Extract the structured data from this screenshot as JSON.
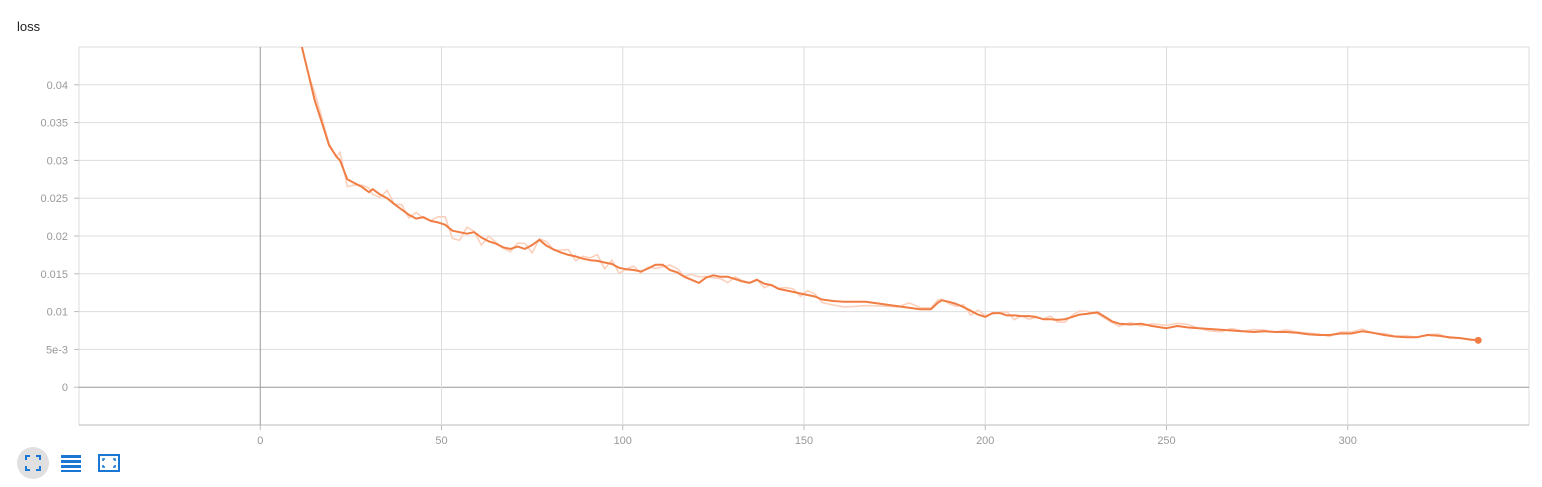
{
  "chart_data": {
    "type": "line",
    "title": "loss",
    "xlim": [
      -50,
      350
    ],
    "ylim": [
      -0.005,
      0.045
    ],
    "x_ticks": [
      0,
      50,
      100,
      150,
      200,
      250,
      300
    ],
    "y_ticks": [
      0,
      0.005,
      0.01,
      0.015,
      0.02,
      0.025,
      0.03,
      0.035,
      0.04
    ],
    "y_tick_labels": [
      "0",
      "5e-3",
      "0.01",
      "0.015",
      "0.02",
      "0.025",
      "0.03",
      "0.035",
      "0.04"
    ],
    "grid": true,
    "colors": {
      "smoothed": "#f07d44",
      "raw": "#fbd1bd",
      "grid": "#dddddd",
      "zero_axis": "#999999"
    },
    "series": [
      {
        "role": "smoothed",
        "x": [
          11.5,
          13,
          15,
          17,
          19,
          21,
          22,
          24,
          26,
          28,
          30,
          31,
          33,
          35,
          37,
          39,
          41,
          43,
          45,
          47,
          49,
          51,
          53,
          55,
          57,
          59,
          61,
          63,
          65,
          67,
          69,
          71,
          73,
          75,
          77,
          79,
          81,
          83,
          85,
          87,
          89,
          91,
          93,
          95,
          97,
          99,
          101,
          103,
          105,
          107,
          109,
          111,
          113,
          115,
          117,
          119,
          121,
          123,
          125,
          127,
          129,
          131,
          133,
          135,
          137,
          139,
          141,
          143,
          145,
          147,
          149,
          151,
          153,
          155,
          158,
          161,
          164,
          167,
          170,
          173,
          176,
          179,
          182,
          185,
          187,
          188,
          190,
          192,
          194,
          196,
          198,
          200,
          202,
          204,
          206,
          208,
          210,
          212,
          214,
          216,
          218,
          220,
          222,
          224,
          226,
          228,
          231,
          233,
          235,
          237,
          240,
          243,
          246,
          250,
          253,
          256,
          259,
          262,
          265,
          268,
          271,
          274,
          277,
          280,
          283,
          286,
          289,
          292,
          295,
          298,
          301,
          304,
          307,
          310,
          313,
          316,
          319,
          322,
          325,
          328,
          331,
          334,
          336
        ],
        "y": [
          0.045,
          0.042,
          0.038,
          0.035,
          0.032,
          0.0305,
          0.03,
          0.0275,
          0.027,
          0.0265,
          0.0258,
          0.0262,
          0.0255,
          0.025,
          0.0242,
          0.0235,
          0.0228,
          0.0223,
          0.0225,
          0.022,
          0.0218,
          0.0215,
          0.0207,
          0.0205,
          0.0203,
          0.0205,
          0.0198,
          0.0193,
          0.019,
          0.0185,
          0.0183,
          0.0186,
          0.0183,
          0.0188,
          0.0195,
          0.0187,
          0.0182,
          0.0178,
          0.0175,
          0.0173,
          0.017,
          0.0168,
          0.0167,
          0.0165,
          0.0163,
          0.0158,
          0.0156,
          0.0155,
          0.0153,
          0.0157,
          0.0162,
          0.0162,
          0.0155,
          0.0152,
          0.0146,
          0.0142,
          0.0138,
          0.0145,
          0.0148,
          0.0146,
          0.0146,
          0.0143,
          0.014,
          0.0138,
          0.0142,
          0.0137,
          0.0135,
          0.013,
          0.0128,
          0.0126,
          0.0124,
          0.0122,
          0.012,
          0.0116,
          0.0114,
          0.0113,
          0.0113,
          0.0113,
          0.0111,
          0.0109,
          0.0107,
          0.0105,
          0.0103,
          0.0103,
          0.0112,
          0.0115,
          0.0113,
          0.011,
          0.0106,
          0.0101,
          0.0096,
          0.0093,
          0.0098,
          0.0098,
          0.0095,
          0.0095,
          0.0094,
          0.0094,
          0.0093,
          0.009,
          0.009,
          0.0089,
          0.009,
          0.0093,
          0.0096,
          0.0097,
          0.0099,
          0.0093,
          0.0087,
          0.0084,
          0.0083,
          0.0084,
          0.0081,
          0.0078,
          0.0081,
          0.0079,
          0.0078,
          0.0077,
          0.0076,
          0.0075,
          0.0074,
          0.0073,
          0.0074,
          0.0073,
          0.0073,
          0.0072,
          0.007,
          0.0069,
          0.0069,
          0.0071,
          0.0071,
          0.0074,
          0.0072,
          0.0069,
          0.0067,
          0.0066,
          0.0066,
          0.0069,
          0.0068,
          0.0066,
          0.0065,
          0.0063,
          0.0062
        ]
      }
    ]
  },
  "toolbar": {
    "buttons": [
      {
        "icon": "fullscreen-icon"
      },
      {
        "icon": "list-icon"
      },
      {
        "icon": "fit-domain-icon"
      }
    ]
  }
}
